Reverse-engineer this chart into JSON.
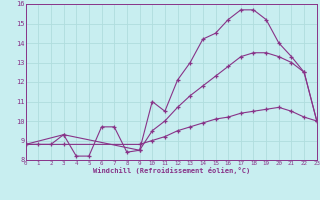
{
  "bg_color": "#c8eef0",
  "grid_color": "#aadddd",
  "line_color": "#883388",
  "xlabel": "Windchill (Refroidissement éolien,°C)",
  "xmin": 0,
  "xmax": 23,
  "ymin": 8,
  "ymax": 16,
  "xticks": [
    0,
    1,
    2,
    3,
    4,
    5,
    6,
    7,
    8,
    9,
    10,
    11,
    12,
    13,
    14,
    15,
    16,
    17,
    18,
    19,
    20,
    21,
    22,
    23
  ],
  "yticks": [
    8,
    9,
    10,
    11,
    12,
    13,
    14,
    15,
    16
  ],
  "line1_x": [
    0,
    1,
    2,
    3,
    4,
    5,
    6,
    7,
    8,
    9,
    10,
    11,
    12,
    13,
    14,
    15,
    16,
    17,
    18,
    19,
    20,
    21,
    22,
    23
  ],
  "line1_y": [
    8.8,
    8.8,
    8.8,
    9.3,
    8.2,
    8.2,
    9.7,
    9.7,
    8.4,
    8.5,
    11.0,
    10.5,
    12.1,
    13.0,
    14.2,
    14.5,
    15.2,
    15.7,
    15.7,
    15.2,
    14.0,
    13.3,
    12.5,
    10.0
  ],
  "line2_x": [
    0,
    3,
    9,
    10,
    11,
    12,
    13,
    14,
    15,
    16,
    17,
    18,
    19,
    20,
    21,
    22,
    23
  ],
  "line2_y": [
    8.8,
    9.3,
    8.5,
    9.5,
    10.0,
    10.7,
    11.3,
    11.8,
    12.3,
    12.8,
    13.3,
    13.5,
    13.5,
    13.3,
    13.0,
    12.5,
    10.0
  ],
  "line3_x": [
    0,
    3,
    9,
    10,
    11,
    12,
    13,
    14,
    15,
    16,
    17,
    18,
    19,
    20,
    21,
    22,
    23
  ],
  "line3_y": [
    8.8,
    8.8,
    8.8,
    9.0,
    9.2,
    9.5,
    9.7,
    9.9,
    10.1,
    10.2,
    10.4,
    10.5,
    10.6,
    10.7,
    10.5,
    10.2,
    10.0
  ]
}
